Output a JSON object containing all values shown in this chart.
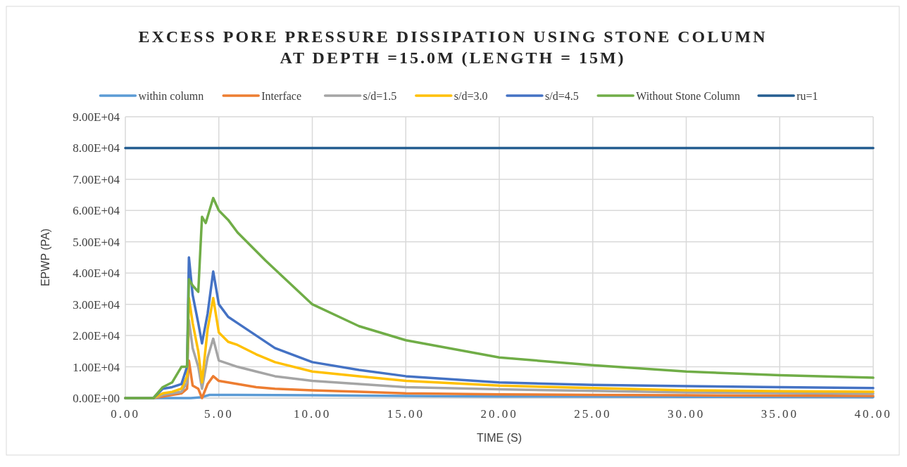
{
  "chart_data": {
    "type": "line",
    "title": "EXCESS PORE PRESSURE DISSIPATION USING STONE COLUMN AT DEPTH =15.0M (LENGTH = 15M)",
    "xlabel": "TIME (S)",
    "ylabel": "EPWP (PA)",
    "xlim": [
      0,
      40
    ],
    "ylim": [
      0,
      90000
    ],
    "xticks": [
      {
        "value": 0,
        "label": "0.00"
      },
      {
        "value": 5,
        "label": "5.00"
      },
      {
        "value": 10,
        "label": "10.00"
      },
      {
        "value": 15,
        "label": "15.00"
      },
      {
        "value": 20,
        "label": "20.00"
      },
      {
        "value": 25,
        "label": "25.00"
      },
      {
        "value": 30,
        "label": "30.00"
      },
      {
        "value": 35,
        "label": "35.00"
      },
      {
        "value": 40,
        "label": "40.00"
      }
    ],
    "yticks": [
      {
        "value": 0,
        "label": "0.00E+00"
      },
      {
        "value": 10000,
        "label": "1.00E+04"
      },
      {
        "value": 20000,
        "label": "2.00E+04"
      },
      {
        "value": 30000,
        "label": "3.00E+04"
      },
      {
        "value": 40000,
        "label": "4.00E+04"
      },
      {
        "value": 50000,
        "label": "5.00E+04"
      },
      {
        "value": 60000,
        "label": "6.00E+04"
      },
      {
        "value": 70000,
        "label": "7.00E+04"
      },
      {
        "value": 80000,
        "label": "8.00E+04"
      },
      {
        "value": 90000,
        "label": "9.00E+04"
      }
    ],
    "grid": true,
    "legend": "top",
    "marker": "none",
    "line_style": "solid",
    "series": [
      {
        "name": "within column",
        "color": "#5b9bd5",
        "x": [
          0,
          3.5,
          4.0,
          4.5,
          6,
          10,
          15,
          20,
          30,
          40
        ],
        "values": [
          0,
          0,
          200,
          1000,
          1000,
          900,
          700,
          500,
          400,
          300
        ]
      },
      {
        "name": "Interface",
        "color": "#ed7d31",
        "x": [
          0,
          1.5,
          2.0,
          2.5,
          3.0,
          3.3,
          3.4,
          3.6,
          3.9,
          4.1,
          4.4,
          4.7,
          5.0,
          5.5,
          6,
          7,
          8,
          10,
          12.5,
          15,
          20,
          25,
          30,
          35,
          40
        ],
        "values": [
          0,
          0,
          500,
          1000,
          1500,
          3000,
          12000,
          4000,
          3000,
          0,
          4500,
          7000,
          5500,
          5000,
          4500,
          3500,
          3000,
          2500,
          2000,
          1500,
          1200,
          1000,
          900,
          800,
          700
        ]
      },
      {
        "name": "s/d=1.5",
        "color": "#a5a5a5",
        "x": [
          0,
          1.5,
          2.0,
          2.5,
          3.0,
          3.3,
          3.4,
          3.6,
          3.9,
          4.1,
          4.4,
          4.7,
          5.0,
          5.5,
          6,
          7,
          8,
          10,
          12.5,
          15,
          20,
          25,
          30,
          35,
          40
        ],
        "values": [
          0,
          0,
          1000,
          1500,
          2000,
          5000,
          25000,
          16000,
          10000,
          3000,
          13000,
          19000,
          12000,
          11000,
          10000,
          8500,
          7000,
          5500,
          4500,
          3500,
          2800,
          2300,
          1800,
          1600,
          1400
        ]
      },
      {
        "name": "s/d=3.0",
        "color": "#ffc000",
        "x": [
          0,
          1.5,
          2.0,
          2.5,
          3.0,
          3.3,
          3.4,
          3.6,
          3.9,
          4.1,
          4.4,
          4.7,
          5.0,
          5.5,
          6,
          7,
          8,
          10,
          12.5,
          15,
          20,
          25,
          30,
          35,
          40
        ],
        "values": [
          0,
          0,
          1500,
          2000,
          3000,
          7000,
          32000,
          24000,
          15000,
          5000,
          22000,
          32000,
          21000,
          18000,
          17000,
          14000,
          11500,
          8500,
          7000,
          5500,
          4000,
          3200,
          2500,
          2200,
          2000
        ]
      },
      {
        "name": "s/d=4.5",
        "color": "#4472c4",
        "x": [
          0,
          1.5,
          2.0,
          2.5,
          3.0,
          3.3,
          3.4,
          3.6,
          3.9,
          4.1,
          4.4,
          4.7,
          5.0,
          5.5,
          6,
          7,
          8,
          10,
          12.5,
          15,
          20,
          25,
          30,
          35,
          40
        ],
        "values": [
          0,
          0,
          3000,
          3500,
          4500,
          10000,
          45000,
          33000,
          24000,
          17500,
          27000,
          40500,
          30000,
          26000,
          24000,
          20000,
          16000,
          11500,
          9000,
          7000,
          5000,
          4200,
          3800,
          3500,
          3200
        ]
      },
      {
        "name": "Without Stone Column",
        "color": "#70ad47",
        "x": [
          0,
          1.5,
          2.0,
          2.5,
          3.0,
          3.3,
          3.4,
          3.6,
          3.9,
          4.1,
          4.3,
          4.5,
          4.7,
          5.0,
          5.5,
          6,
          7.5,
          10,
          12.5,
          15,
          20,
          25,
          30,
          35,
          40
        ],
        "values": [
          0,
          0,
          3500,
          5000,
          10000,
          10000,
          38000,
          36000,
          34000,
          58000,
          56000,
          60000,
          64000,
          60000,
          57000,
          53000,
          44000,
          30000,
          23000,
          18500,
          13000,
          10500,
          8500,
          7300,
          6500
        ]
      },
      {
        "name": "ru=1",
        "color": "#255e91",
        "x": [
          0,
          40
        ],
        "values": [
          80000,
          80000
        ]
      }
    ]
  }
}
